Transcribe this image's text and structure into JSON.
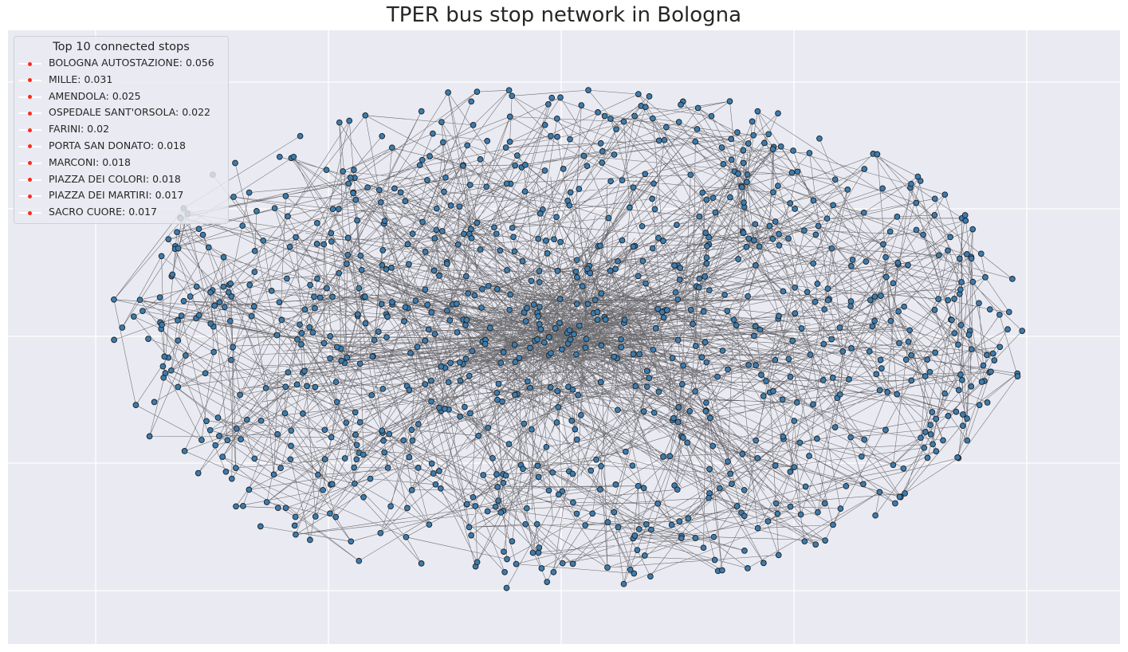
{
  "title": "TPER bus stop network in Bologna",
  "legend": {
    "title": "Top 10 connected stops",
    "items": [
      {
        "label": "BOLOGNA AUTOSTAZIONE: 0.056"
      },
      {
        "label": "MILLE: 0.031"
      },
      {
        "label": "AMENDOLA: 0.025"
      },
      {
        "label": "OSPEDALE SANT'ORSOLA: 0.022"
      },
      {
        "label": "FARINI: 0.02"
      },
      {
        "label": "PORTA SAN DONATO: 0.018"
      },
      {
        "label": "MARCONI: 0.018"
      },
      {
        "label": "PIAZZA DEI COLORI: 0.018"
      },
      {
        "label": "PIAZZA DEI MARTIRI: 0.017"
      },
      {
        "label": "SACRO CUORE: 0.017"
      }
    ]
  },
  "colors": {
    "background": "#eaeaf2",
    "grid": "#ffffff",
    "node_fill": "#3a7cb0",
    "node_edge": "#1f1f1f",
    "edge": "#000000",
    "legend_marker": "#ff2a1a"
  },
  "chart_data": {
    "type": "network",
    "layout": "force-directed",
    "grid": true,
    "legend_placement": "top-left",
    "node_count_estimate": 1000,
    "node_shape": "circle",
    "edge_style": "thin semi-transparent lines"
  }
}
